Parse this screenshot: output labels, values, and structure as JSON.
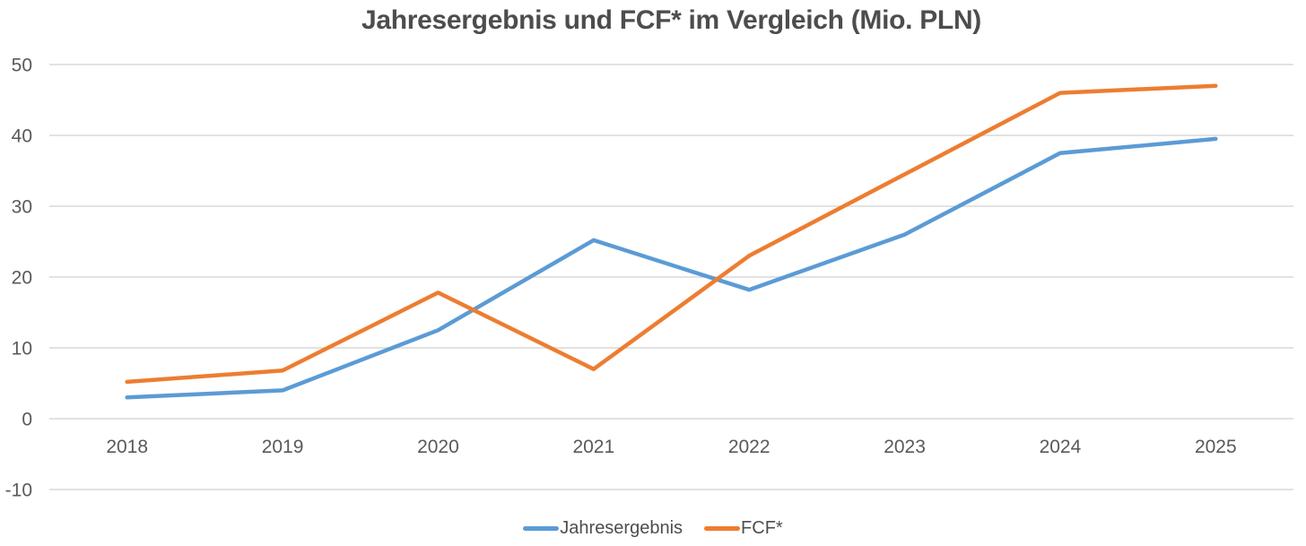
{
  "chart_data": {
    "type": "line",
    "title": "Jahresergebnis und FCF* im Vergleich (Mio. PLN)",
    "categories": [
      "2018",
      "2019",
      "2020",
      "2021",
      "2022",
      "2023",
      "2024",
      "2025"
    ],
    "series": [
      {
        "name": "Jahresergebnis",
        "color": "#5B9BD5",
        "values": [
          3,
          4,
          12.5,
          25.2,
          18.2,
          26,
          37.5,
          39.5
        ]
      },
      {
        "name": "FCF*",
        "color": "#ED7D31",
        "values": [
          5.2,
          6.8,
          17.8,
          7,
          23,
          34.5,
          46,
          47
        ]
      },
      {
        "note": "unit",
        "unit": "Mio. PLN"
      }
    ],
    "xlabel": "",
    "ylabel": "",
    "ylim": [
      -10,
      50
    ],
    "yticks": [
      50,
      40,
      30,
      20,
      10,
      0,
      -10
    ],
    "grid": true,
    "legend_position": "bottom-center",
    "colors": {
      "gridline": "#D9D9D9",
      "axis_label": "#595959",
      "title": "#4d4d4d",
      "background": "#FFFFFF",
      "series_blue": "#5B9BD5",
      "series_orange": "#ED7D31"
    }
  }
}
